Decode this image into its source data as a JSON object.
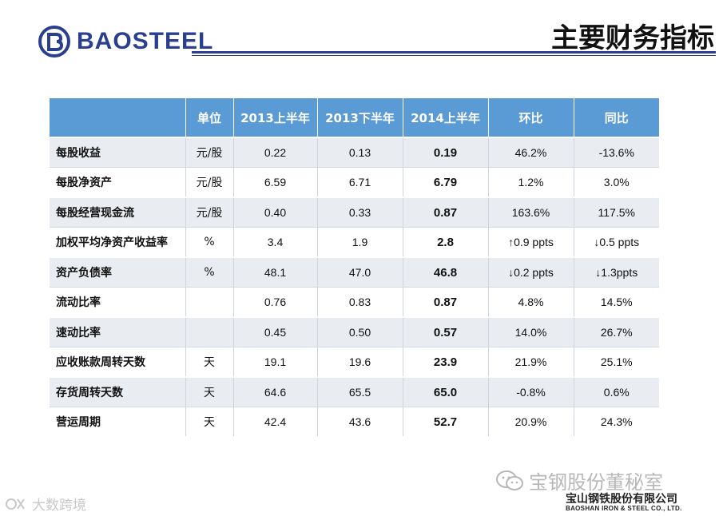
{
  "header": {
    "logo_text": "BAOSTEEL",
    "title": "主要财务指标"
  },
  "table": {
    "headers": [
      "",
      "单位",
      "2013上半年",
      "2013下半年",
      "2014上半年",
      "环比",
      "同比"
    ],
    "rows": [
      {
        "name": "每股收益",
        "unit": "元/股",
        "h1_2013": "0.22",
        "h2_2013": "0.13",
        "h1_2014": "0.19",
        "qoq": "46.2%",
        "yoy": "-13.6%"
      },
      {
        "name": "每股净资产",
        "unit": "元/股",
        "h1_2013": "6.59",
        "h2_2013": "6.71",
        "h1_2014": "6.79",
        "qoq": "1.2%",
        "yoy": "3.0%"
      },
      {
        "name": "每股经营现金流",
        "unit": "元/股",
        "h1_2013": "0.40",
        "h2_2013": "0.33",
        "h1_2014": "0.87",
        "qoq": "163.6%",
        "yoy": "117.5%"
      },
      {
        "name": "加权平均净资产收益率",
        "unit": "%",
        "h1_2013": "3.4",
        "h2_2013": "1.9",
        "h1_2014": "2.8",
        "qoq": "↑0.9 ppts",
        "yoy": "↓0.5 ppts"
      },
      {
        "name": "资产负债率",
        "unit": "%",
        "h1_2013": "48.1",
        "h2_2013": "47.0",
        "h1_2014": "46.8",
        "qoq": "↓0.2 ppts",
        "yoy": "↓1.3ppts"
      },
      {
        "name": "流动比率",
        "unit": "",
        "h1_2013": "0.76",
        "h2_2013": "0.83",
        "h1_2014": "0.87",
        "qoq": "4.8%",
        "yoy": "14.5%"
      },
      {
        "name": "速动比率",
        "unit": "",
        "h1_2013": "0.45",
        "h2_2013": "0.50",
        "h1_2014": "0.57",
        "qoq": "14.0%",
        "yoy": "26.7%"
      },
      {
        "name": "应收账款周转天数",
        "unit": "天",
        "h1_2013": "19.1",
        "h2_2013": "19.6",
        "h1_2014": "23.9",
        "qoq": "21.9%",
        "yoy": "25.1%"
      },
      {
        "name": "存货周转天数",
        "unit": "天",
        "h1_2013": "64.6",
        "h2_2013": "65.5",
        "h1_2014": "65.0",
        "qoq": "-0.8%",
        "yoy": "0.6%"
      },
      {
        "name": "营运周期",
        "unit": "天",
        "h1_2013": "42.4",
        "h2_2013": "43.6",
        "h1_2014": "52.7",
        "qoq": "20.9%",
        "yoy": "24.3%"
      }
    ]
  },
  "footer": {
    "wechat_label": "宝钢股份董秘室",
    "company_cn": "宝山钢铁股份有限公司",
    "company_en": "BAOSHAN IRON & STEEL CO., LTD.",
    "watermark": "大数跨境"
  },
  "colors": {
    "header_blue": "#5b9bd5",
    "brand_blue": "#2a3f8f",
    "row_stripe": "#e9ecf1"
  }
}
